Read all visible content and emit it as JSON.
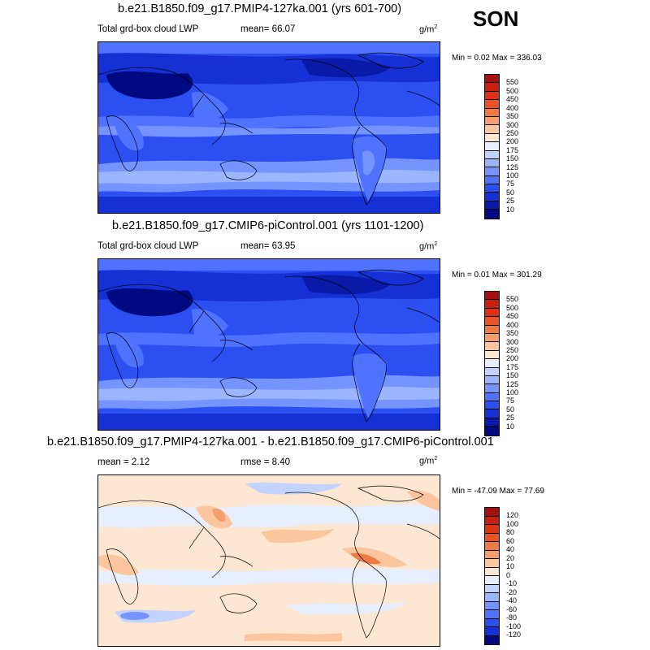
{
  "season": "SON",
  "panels": [
    {
      "title": "b.e21.B1850.f09_g17.PMIP4-127ka.001 (yrs 601-700)",
      "left_label": "Total grd-box cloud LWP",
      "mean_text": "mean=  66.07",
      "extra_text": "",
      "units": "g/m",
      "units_sup": "2",
      "minmax": "Min =   0.02 Max = 336.03",
      "type": "abs"
    },
    {
      "title": "b.e21.B1850.f09_g17.CMIP6-piControl.001 (yrs 1101-1200)",
      "left_label": "Total grd-box cloud LWP",
      "mean_text": "mean=  63.95",
      "extra_text": "",
      "units": "g/m",
      "units_sup": "2",
      "minmax": "Min =   0.01 Max = 301.29",
      "type": "abs"
    },
    {
      "title": "b.e21.B1850.f09_g17.PMIP4-127ka.001 - b.e21.B1850.f09_g17.CMIP6-piControl.001",
      "left_label": "mean =   2.12",
      "mean_text": "",
      "extra_text": "rmse =   8.40",
      "units": "g/m",
      "units_sup": "2",
      "minmax": "Min = -47.09 Max =  77.69",
      "type": "diff"
    }
  ],
  "colorbars": {
    "abs": {
      "labels": [
        "550",
        "500",
        "450",
        "400",
        "350",
        "300",
        "250",
        "200",
        "175",
        "150",
        "125",
        "100",
        "75",
        "50",
        "25",
        "10"
      ],
      "colors": [
        "#a50f0f",
        "#c62010",
        "#dc3412",
        "#e85424",
        "#f07a44",
        "#f59f6e",
        "#fbc59e",
        "#fde6d2",
        "#e6eeff",
        "#c2d3ff",
        "#9bb5ff",
        "#7594ff",
        "#4f72ff",
        "#2c4ff2",
        "#1530d4",
        "#0a1aa8",
        "#000a80"
      ]
    },
    "diff": {
      "labels": [
        "120",
        "100",
        "80",
        "60",
        "40",
        "20",
        "10",
        "0",
        "-10",
        "-20",
        "-40",
        "-60",
        "-80",
        "-100",
        "-120"
      ],
      "colors": [
        "#a50f0f",
        "#c62010",
        "#dc3412",
        "#e85424",
        "#f07a44",
        "#f59f6e",
        "#fbc59e",
        "#fde6d2",
        "#e6eeff",
        "#c2d3ff",
        "#9bb5ff",
        "#7594ff",
        "#4f72ff",
        "#2c4ff2",
        "#1530d4",
        "#000a80"
      ]
    }
  }
}
